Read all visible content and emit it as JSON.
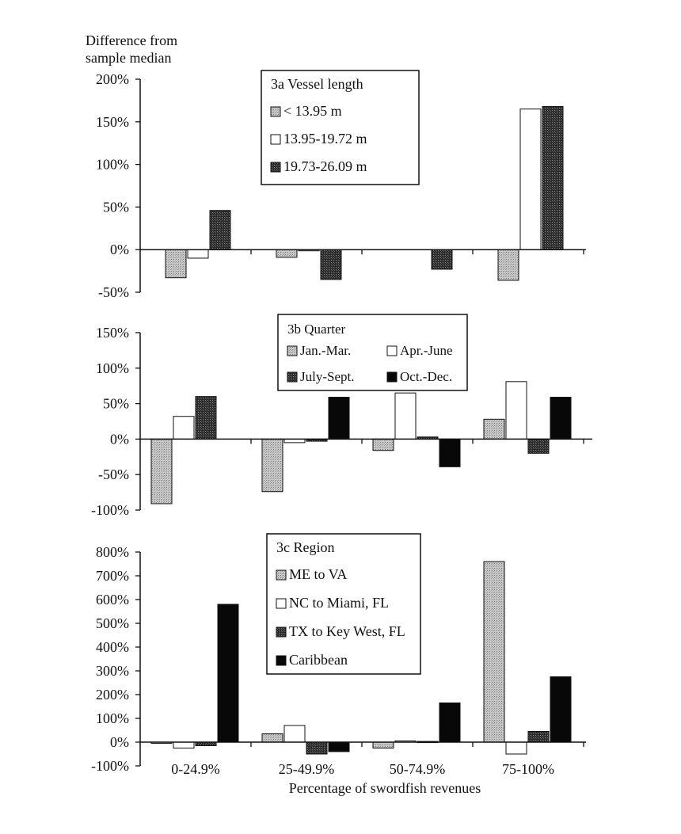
{
  "figure": {
    "ylabel_lines": [
      "Difference from",
      "sample median"
    ],
    "xlabel": "Percentage of swordfish revenues",
    "categories": [
      "0-24.9%",
      "25-49.9%",
      "50-74.9%",
      "75-100%"
    ]
  },
  "colors": {
    "light_stipple": "#b5b5b5",
    "open": "#ffffff",
    "dark_stipple": "#3a3a3a",
    "solid": "#080808"
  },
  "chart_data": [
    {
      "type": "bar",
      "title": "3a  Vessel length",
      "categories": [
        "0-24.9%",
        "25-49.9%",
        "50-74.9%",
        "75-100%"
      ],
      "ylim": [
        -50,
        200
      ],
      "yticks": [
        -50,
        0,
        50,
        100,
        150,
        200
      ],
      "ytick_labels": [
        "-50%",
        "0%",
        "50%",
        "100%",
        "150%",
        "200%"
      ],
      "legend": "top-center",
      "series": [
        {
          "name": "< 13.95 m",
          "style": "light_stipple",
          "values": [
            -33,
            -9,
            null,
            -36
          ]
        },
        {
          "name": "13.95-19.72 m",
          "style": "open",
          "values": [
            -10,
            -1,
            null,
            165
          ]
        },
        {
          "name": "19.73-26.09 m",
          "style": "dark_stipple",
          "values": [
            46,
            -35,
            -23,
            168
          ]
        }
      ]
    },
    {
      "type": "bar",
      "title": "3b  Quarter",
      "categories": [
        "0-24.9%",
        "25-49.9%",
        "50-74.9%",
        "75-100%"
      ],
      "ylim": [
        -100,
        150
      ],
      "yticks": [
        -100,
        -50,
        0,
        50,
        100,
        150
      ],
      "ytick_labels": [
        "-100%",
        "-50%",
        "0%",
        "50%",
        "100%",
        "150%"
      ],
      "legend": "top-center",
      "series": [
        {
          "name": "Jan.-Mar.",
          "style": "light_stipple",
          "values": [
            -91,
            -74,
            -16,
            28
          ]
        },
        {
          "name": "Apr.-June",
          "style": "open",
          "values": [
            32,
            -5,
            65,
            81
          ]
        },
        {
          "name": "July-Sept.",
          "style": "dark_stipple",
          "values": [
            60,
            -3,
            3,
            -20
          ]
        },
        {
          "name": "Oct.-Dec.",
          "style": "solid",
          "values": [
            null,
            59,
            -39,
            59
          ]
        }
      ]
    },
    {
      "type": "bar",
      "title": "3c  Region",
      "categories": [
        "0-24.9%",
        "25-49.9%",
        "50-74.9%",
        "75-100%"
      ],
      "ylim": [
        -100,
        800
      ],
      "yticks": [
        -100,
        0,
        100,
        200,
        300,
        400,
        500,
        600,
        700,
        800
      ],
      "ytick_labels": [
        "-100%",
        "0%",
        "100%",
        "200%",
        "300%",
        "400%",
        "500%",
        "600%",
        "700%",
        "800%"
      ],
      "legend": "top-center",
      "series": [
        {
          "name": "ME to VA",
          "style": "light_stipple",
          "values": [
            -5,
            35,
            -25,
            760
          ]
        },
        {
          "name": "NC to Miami, FL",
          "style": "open",
          "values": [
            -25,
            70,
            5,
            -50
          ]
        },
        {
          "name": "TX to Key West, FL",
          "style": "dark_stipple",
          "values": [
            -15,
            -50,
            3,
            45
          ]
        },
        {
          "name": "Caribbean",
          "style": "solid",
          "values": [
            580,
            -40,
            165,
            275
          ]
        }
      ]
    }
  ]
}
